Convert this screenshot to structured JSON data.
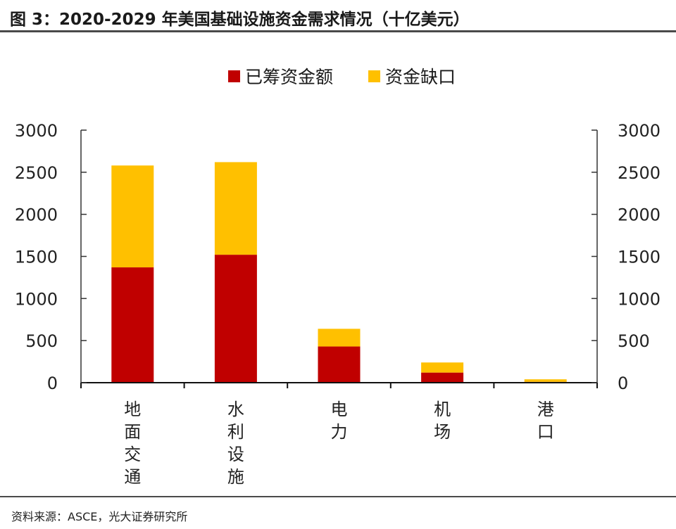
{
  "header": {
    "title": "图 3：2020-2029 年美国基础设施资金需求情况（十亿美元）"
  },
  "footer": {
    "source": "资料来源：ASCE，光大证券研究所"
  },
  "colors": {
    "funded": "#C00000",
    "gap": "#FFC000",
    "axis": "#333333"
  },
  "chart_data": {
    "type": "bar",
    "stacked": true,
    "title": "图 3：2020-2029 年美国基础设施资金需求情况（十亿美元）",
    "xlabel": "",
    "ylabel": "",
    "ylim": [
      0,
      3000
    ],
    "y_ticks": [
      "0",
      "500",
      "1000",
      "1500",
      "2000",
      "2500",
      "3000"
    ],
    "y_tick_values": [
      0,
      500,
      1000,
      1500,
      2000,
      2500,
      3000
    ],
    "secondary_y_ticks": [
      "0",
      "500",
      "1000",
      "1500",
      "2000",
      "2500",
      "3000"
    ],
    "grid": false,
    "legend_position": "top-center",
    "categories": [
      "地面交通",
      "水利设施",
      "电力",
      "机场",
      "港口"
    ],
    "series": [
      {
        "name": "已筹资金额",
        "color": "#C00000",
        "values": [
          1370,
          1520,
          430,
          120,
          10
        ]
      },
      {
        "name": "资金缺口",
        "color": "#FFC000",
        "values": [
          1210,
          1100,
          210,
          120,
          30
        ]
      }
    ]
  }
}
